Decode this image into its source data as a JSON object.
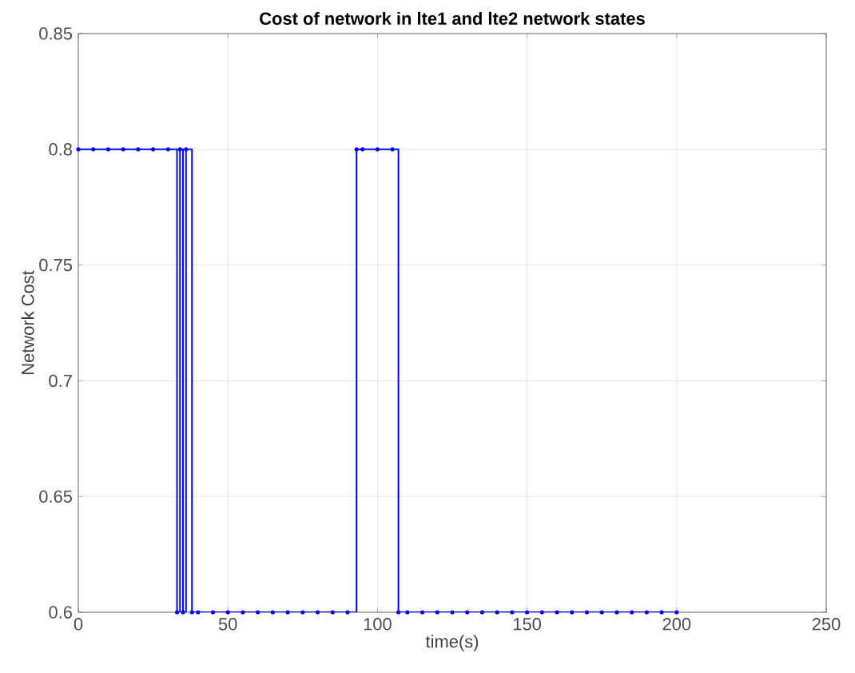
{
  "chart_data": {
    "type": "step",
    "title": "Cost of network in lte1 and lte2 network states",
    "xlabel": "time(s)",
    "ylabel": "Network Cost",
    "x": [
      0,
      5,
      10,
      15,
      20,
      25,
      30,
      33,
      34,
      35,
      36,
      38,
      40,
      45,
      50,
      55,
      60,
      65,
      70,
      75,
      80,
      85,
      90,
      93,
      95,
      100,
      105,
      107,
      110,
      115,
      120,
      125,
      130,
      135,
      140,
      145,
      150,
      155,
      160,
      165,
      170,
      175,
      180,
      185,
      190,
      195,
      200
    ],
    "series": [
      {
        "color": "#0000ff",
        "values": [
          0.8,
          0.8,
          0.8,
          0.8,
          0.8,
          0.8,
          0.8,
          0.6,
          0.8,
          0.6,
          0.8,
          0.6,
          0.6,
          0.6,
          0.6,
          0.6,
          0.6,
          0.6,
          0.6,
          0.6,
          0.6,
          0.6,
          0.6,
          0.8,
          0.8,
          0.8,
          0.8,
          0.6,
          0.6,
          0.6,
          0.6,
          0.6,
          0.6,
          0.6,
          0.6,
          0.6,
          0.6,
          0.6,
          0.6,
          0.6,
          0.6,
          0.6,
          0.6,
          0.6,
          0.6,
          0.6,
          0.6
        ]
      }
    ],
    "xlim": [
      0,
      250
    ],
    "ylim": [
      0.6,
      0.85
    ],
    "xticks": [
      0,
      50,
      100,
      150,
      200,
      250
    ],
    "yticks": [
      0.6,
      0.65,
      0.7,
      0.75,
      0.8,
      0.85
    ],
    "grid": true,
    "marker": "circle",
    "line_style": "solid"
  }
}
